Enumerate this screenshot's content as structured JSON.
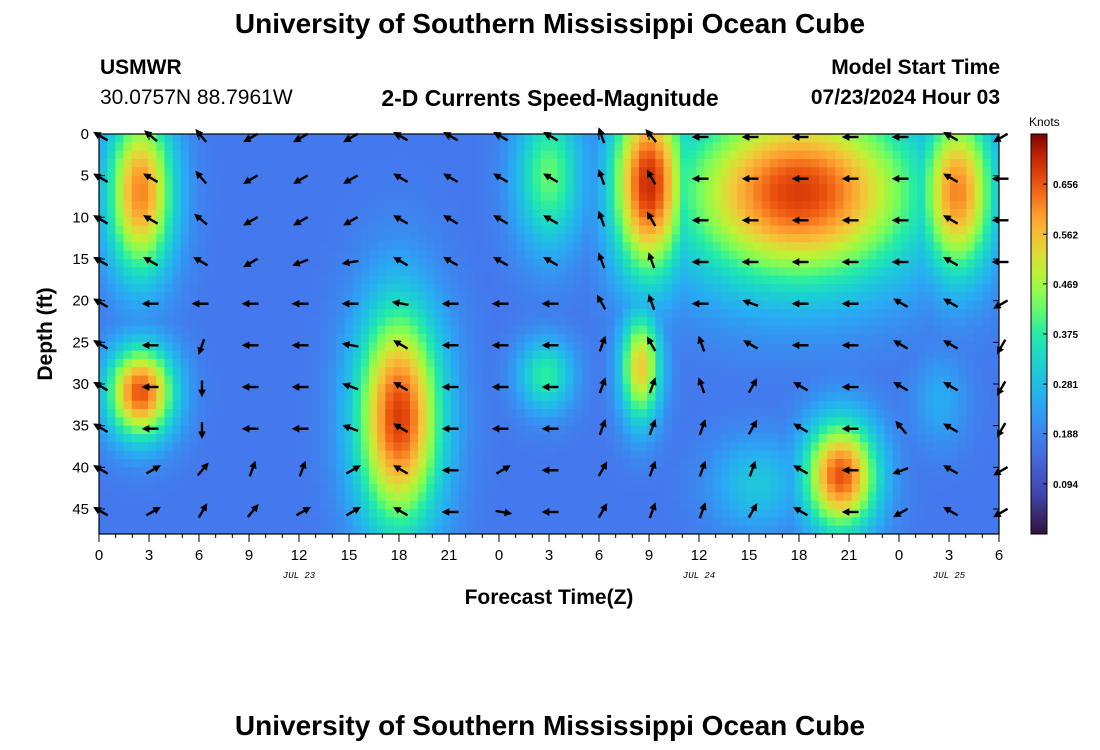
{
  "header": {
    "title": "University of Southern Mississippi Ocean Cube",
    "station": "USMWR",
    "coords": "30.0757N  88.7961W",
    "plot_title": "2-D Currents Speed-Magnitude",
    "model_label": "Model Start Time",
    "model_time": "07/23/2024 Hour 03"
  },
  "footer": {
    "title": "University of Southern Mississippi Ocean Cube"
  },
  "colors": {
    "background": "#ffffff",
    "text": "#000000",
    "arrow": "#000000"
  },
  "chart_data": {
    "type": "heatmap",
    "title": "2-D Currents Speed-Magnitude",
    "xlabel": "Forecast Time(Z)",
    "ylabel": "Depth (ft)",
    "x_tick_labels": [
      "0",
      "3",
      "6",
      "9",
      "12",
      "15",
      "18",
      "21",
      "0",
      "3",
      "6",
      "9",
      "12",
      "15",
      "18",
      "21",
      "0",
      "3",
      "6"
    ],
    "x_range_hours": [
      0,
      54
    ],
    "date_labels": [
      {
        "label": "JUL 23",
        "hour": 12
      },
      {
        "label": "JUL 24",
        "hour": 36
      },
      {
        "label": "JUL 25",
        "hour": 51
      }
    ],
    "y_ticks": [
      0,
      5,
      10,
      15,
      20,
      25,
      30,
      35,
      40,
      45
    ],
    "y_range_ft": [
      0,
      48
    ],
    "colorbar": {
      "unit": "Knots",
      "min": 0.0,
      "max": 0.75,
      "tick_labels": [
        "0.656",
        "0.562",
        "0.469",
        "0.375",
        "0.281",
        "0.188",
        "0.094"
      ]
    },
    "speed_blobs_knots": [
      {
        "t": 2.5,
        "d": 7,
        "st": 1.8,
        "sd": 9,
        "v": 0.62
      },
      {
        "t": 2.5,
        "d": 31,
        "st": 1.8,
        "sd": 5,
        "v": 0.66
      },
      {
        "t": 18,
        "d": 34,
        "st": 2.3,
        "sd": 12,
        "v": 0.68
      },
      {
        "t": 27,
        "d": 5,
        "st": 1.8,
        "sd": 8,
        "v": 0.42
      },
      {
        "t": 26.8,
        "d": 29,
        "st": 1.5,
        "sd": 4,
        "v": 0.38
      },
      {
        "t": 33,
        "d": 6,
        "st": 2.0,
        "sd": 10,
        "v": 0.7
      },
      {
        "t": 32.5,
        "d": 28,
        "st": 1.1,
        "sd": 6,
        "v": 0.55
      },
      {
        "t": 36.5,
        "d": 2,
        "st": 1.8,
        "sd": 6,
        "v": 0.35
      },
      {
        "t": 39.5,
        "d": 42,
        "st": 2.5,
        "sd": 5,
        "v": 0.3
      },
      {
        "t": 42,
        "d": 7,
        "st": 6.5,
        "sd": 10,
        "v": 0.68
      },
      {
        "t": 44.5,
        "d": 41,
        "st": 2.0,
        "sd": 6,
        "v": 0.66
      },
      {
        "t": 51.5,
        "d": 7,
        "st": 2.0,
        "sd": 9,
        "v": 0.62
      },
      {
        "t": 50.5,
        "d": 32,
        "st": 1.5,
        "sd": 5,
        "v": 0.25
      }
    ],
    "background_speed_knots": 0.17,
    "arrow_grid": {
      "hours": [
        0,
        3,
        6,
        9,
        12,
        15,
        18,
        21,
        24,
        27,
        30,
        33,
        36,
        39,
        42,
        45,
        48,
        51,
        54
      ],
      "depths_ft": [
        0,
        5,
        10,
        15,
        20,
        25,
        30,
        35,
        40,
        45
      ]
    },
    "arrow_directions": [
      [
        300,
        300,
        300,
        300,
        300,
        300,
        300,
        300,
        300,
        300
      ],
      [
        310,
        300,
        300,
        300,
        270,
        270,
        270,
        270,
        60,
        60
      ],
      [
        320,
        320,
        310,
        300,
        270,
        200,
        180,
        180,
        40,
        30
      ],
      [
        240,
        240,
        240,
        240,
        270,
        270,
        270,
        270,
        20,
        40
      ],
      [
        240,
        240,
        240,
        250,
        270,
        270,
        270,
        270,
        20,
        60
      ],
      [
        240,
        240,
        240,
        260,
        270,
        280,
        290,
        290,
        60,
        60
      ],
      [
        300,
        300,
        300,
        300,
        280,
        300,
        300,
        300,
        300,
        300
      ],
      [
        300,
        300,
        300,
        300,
        270,
        270,
        270,
        270,
        270,
        270
      ],
      [
        300,
        300,
        300,
        300,
        270,
        270,
        270,
        270,
        60,
        100
      ],
      [
        300,
        300,
        300,
        300,
        270,
        270,
        270,
        270,
        270,
        270
      ],
      [
        340,
        340,
        340,
        340,
        330,
        20,
        20,
        20,
        30,
        30
      ],
      [
        320,
        330,
        330,
        340,
        340,
        330,
        20,
        20,
        20,
        20
      ],
      [
        270,
        270,
        270,
        270,
        270,
        340,
        340,
        20,
        20,
        20
      ],
      [
        270,
        270,
        270,
        270,
        290,
        300,
        30,
        30,
        20,
        30
      ],
      [
        270,
        270,
        270,
        270,
        270,
        270,
        300,
        300,
        300,
        300
      ],
      [
        270,
        270,
        270,
        270,
        270,
        270,
        270,
        270,
        270,
        270
      ],
      [
        270,
        270,
        270,
        270,
        300,
        300,
        300,
        320,
        250,
        240
      ],
      [
        300,
        300,
        300,
        300,
        300,
        300,
        300,
        300,
        300,
        300
      ],
      [
        240,
        270,
        270,
        270,
        240,
        210,
        210,
        210,
        240,
        240
      ]
    ]
  }
}
